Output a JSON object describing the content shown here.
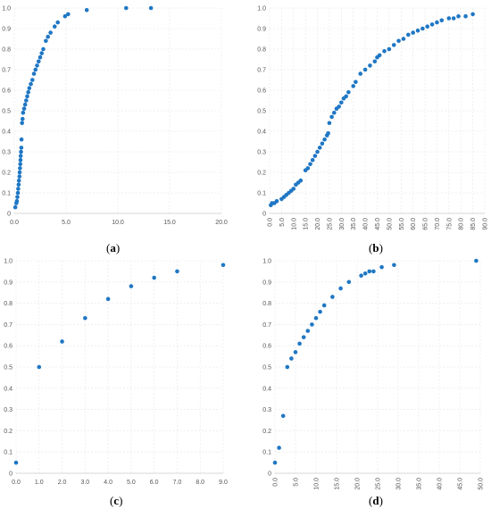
{
  "marker_color": "#1f77c4",
  "chart_data": [
    {
      "type": "scatter",
      "caption_pre": "(",
      "caption_letter": "a",
      "caption_post": ")",
      "xlim": [
        0,
        20
      ],
      "ylim": [
        0,
        1
      ],
      "xticks": [
        "0.0",
        "5.0",
        "10.0",
        "15.0",
        "20.0"
      ],
      "yticks": [
        "0",
        "0.1",
        "0.2",
        "0.3",
        "0.4",
        "0.5",
        "0.6",
        "0.7",
        "0.8",
        "0.9",
        "1.0"
      ],
      "grid": true,
      "points": [
        [
          0.1,
          0.03
        ],
        [
          0.2,
          0.05
        ],
        [
          0.25,
          0.06
        ],
        [
          0.3,
          0.08
        ],
        [
          0.35,
          0.1
        ],
        [
          0.38,
          0.12
        ],
        [
          0.42,
          0.14
        ],
        [
          0.45,
          0.16
        ],
        [
          0.5,
          0.18
        ],
        [
          0.52,
          0.2
        ],
        [
          0.55,
          0.22
        ],
        [
          0.58,
          0.24
        ],
        [
          0.6,
          0.26
        ],
        [
          0.62,
          0.28
        ],
        [
          0.65,
          0.3
        ],
        [
          0.68,
          0.32
        ],
        [
          0.7,
          0.36
        ],
        [
          0.75,
          0.44
        ],
        [
          0.8,
          0.46
        ],
        [
          0.85,
          0.49
        ],
        [
          0.95,
          0.51
        ],
        [
          1.05,
          0.53
        ],
        [
          1.15,
          0.55
        ],
        [
          1.25,
          0.57
        ],
        [
          1.35,
          0.59
        ],
        [
          1.45,
          0.61
        ],
        [
          1.6,
          0.63
        ],
        [
          1.75,
          0.65
        ],
        [
          1.9,
          0.68
        ],
        [
          2.05,
          0.7
        ],
        [
          2.2,
          0.72
        ],
        [
          2.35,
          0.74
        ],
        [
          2.5,
          0.76
        ],
        [
          2.65,
          0.78
        ],
        [
          2.8,
          0.8
        ],
        [
          3.05,
          0.84
        ],
        [
          3.25,
          0.86
        ],
        [
          3.5,
          0.88
        ],
        [
          3.9,
          0.91
        ],
        [
          4.2,
          0.93
        ],
        [
          4.9,
          0.96
        ],
        [
          5.2,
          0.97
        ],
        [
          7.0,
          0.99
        ],
        [
          10.8,
          1.0
        ],
        [
          13.2,
          1.0
        ]
      ]
    },
    {
      "type": "scatter",
      "caption_pre": "(",
      "caption_letter": "b",
      "caption_post": ")",
      "xlim": [
        0,
        90
      ],
      "ylim": [
        0,
        1
      ],
      "xticks": [
        "0.0",
        "5.0",
        "10.0",
        "15.0",
        "20.0",
        "25.0",
        "30.0",
        "35.0",
        "40.0",
        "45.0",
        "50.0",
        "55.0",
        "60.0",
        "65.0",
        "70.0",
        "75.0",
        "80.0",
        "85.0",
        "90.0"
      ],
      "yticks": [
        "0",
        "0.1",
        "0.2",
        "0.3",
        "0.4",
        "0.5",
        "0.6",
        "0.7",
        "0.8",
        "0.9",
        "1.0"
      ],
      "grid": true,
      "points": [
        [
          0.5,
          0.04
        ],
        [
          1,
          0.05
        ],
        [
          2,
          0.05
        ],
        [
          3,
          0.06
        ],
        [
          5,
          0.07
        ],
        [
          6,
          0.08
        ],
        [
          7,
          0.09
        ],
        [
          8,
          0.1
        ],
        [
          9,
          0.11
        ],
        [
          10,
          0.12
        ],
        [
          11,
          0.14
        ],
        [
          12,
          0.15
        ],
        [
          13,
          0.16
        ],
        [
          15,
          0.21
        ],
        [
          16,
          0.22
        ],
        [
          17,
          0.24
        ],
        [
          18,
          0.26
        ],
        [
          19,
          0.28
        ],
        [
          20,
          0.3
        ],
        [
          21,
          0.32
        ],
        [
          22,
          0.34
        ],
        [
          23,
          0.36
        ],
        [
          24,
          0.38
        ],
        [
          24.5,
          0.39
        ],
        [
          25,
          0.44
        ],
        [
          26,
          0.47
        ],
        [
          27,
          0.49
        ],
        [
          28,
          0.51
        ],
        [
          29,
          0.52
        ],
        [
          30,
          0.54
        ],
        [
          31,
          0.56
        ],
        [
          32,
          0.57
        ],
        [
          33,
          0.59
        ],
        [
          35,
          0.62
        ],
        [
          36,
          0.64
        ],
        [
          38,
          0.68
        ],
        [
          40,
          0.7
        ],
        [
          42,
          0.72
        ],
        [
          44,
          0.74
        ],
        [
          45,
          0.76
        ],
        [
          46,
          0.77
        ],
        [
          48,
          0.79
        ],
        [
          50,
          0.8
        ],
        [
          52,
          0.82
        ],
        [
          54,
          0.84
        ],
        [
          56,
          0.85
        ],
        [
          58,
          0.87
        ],
        [
          60,
          0.88
        ],
        [
          62,
          0.89
        ],
        [
          64,
          0.9
        ],
        [
          66,
          0.91
        ],
        [
          68,
          0.92
        ],
        [
          70,
          0.93
        ],
        [
          72,
          0.94
        ],
        [
          75,
          0.95
        ],
        [
          77,
          0.95
        ],
        [
          79,
          0.96
        ],
        [
          82,
          0.96
        ],
        [
          85,
          0.97
        ]
      ]
    },
    {
      "type": "scatter",
      "caption_pre": "(",
      "caption_letter": "c",
      "caption_post": ")",
      "xlim": [
        0,
        9
      ],
      "ylim": [
        0,
        1
      ],
      "xticks": [
        "0.0",
        "1.0",
        "2.0",
        "3.0",
        "4.0",
        "5.0",
        "6.0",
        "7.0",
        "8.0",
        "9.0"
      ],
      "yticks": [
        "0",
        "0.1",
        "0.2",
        "0.3",
        "0.4",
        "0.5",
        "0.6",
        "0.7",
        "0.8",
        "0.9",
        "1.0"
      ],
      "grid": true,
      "points": [
        [
          0,
          0.05
        ],
        [
          1,
          0.5
        ],
        [
          2,
          0.62
        ],
        [
          3,
          0.73
        ],
        [
          4,
          0.82
        ],
        [
          5,
          0.88
        ],
        [
          6,
          0.92
        ],
        [
          7,
          0.95
        ],
        [
          9,
          0.98
        ]
      ]
    },
    {
      "type": "scatter",
      "caption_pre": "(",
      "caption_letter": "d",
      "caption_post": ")",
      "xlim": [
        0,
        50
      ],
      "ylim": [
        0,
        1
      ],
      "xticks": [
        "0.0",
        "5.0",
        "10.0",
        "15.0",
        "20.0",
        "25.0",
        "30.0",
        "35.0",
        "40.0",
        "45.0",
        "50.0"
      ],
      "yticks": [
        "0",
        "0.1",
        "0.2",
        "0.3",
        "0.4",
        "0.5",
        "0.6",
        "0.7",
        "0.8",
        "0.9",
        "1.0"
      ],
      "grid": true,
      "points": [
        [
          0,
          0.05
        ],
        [
          1,
          0.12
        ],
        [
          2,
          0.27
        ],
        [
          3,
          0.5
        ],
        [
          4,
          0.54
        ],
        [
          5,
          0.57
        ],
        [
          6,
          0.61
        ],
        [
          7,
          0.64
        ],
        [
          8,
          0.67
        ],
        [
          9,
          0.7
        ],
        [
          10,
          0.73
        ],
        [
          11,
          0.76
        ],
        [
          12,
          0.79
        ],
        [
          14,
          0.83
        ],
        [
          16,
          0.87
        ],
        [
          18,
          0.9
        ],
        [
          21,
          0.93
        ],
        [
          22,
          0.94
        ],
        [
          23,
          0.95
        ],
        [
          24,
          0.95
        ],
        [
          26,
          0.97
        ],
        [
          29,
          0.98
        ],
        [
          49,
          1.0
        ]
      ]
    }
  ]
}
